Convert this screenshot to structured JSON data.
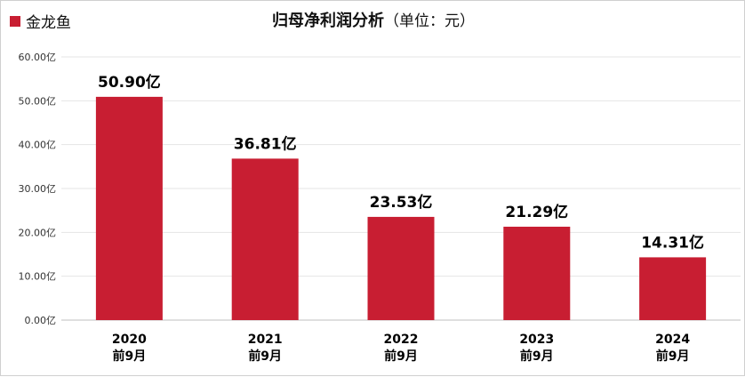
{
  "legend": {
    "label": "金龙鱼",
    "color": "#c81e32"
  },
  "title": {
    "main": "归母净利润分析",
    "unit": "（单位：元）"
  },
  "chart_data": {
    "type": "bar",
    "title": "归母净利润分析（单位：元）",
    "series": [
      {
        "name": "金龙鱼",
        "values": [
          50.9,
          36.81,
          23.53,
          21.29,
          14.31
        ],
        "labels": [
          "50.90亿",
          "36.81亿",
          "23.53亿",
          "21.29亿",
          "14.31亿"
        ]
      }
    ],
    "categories": [
      {
        "year": "2020",
        "period": "前9月"
      },
      {
        "year": "2021",
        "period": "前9月"
      },
      {
        "year": "2022",
        "period": "前9月"
      },
      {
        "year": "2023",
        "period": "前9月"
      },
      {
        "year": "2024",
        "period": "前9月"
      }
    ],
    "yticks": [
      "0.00亿",
      "10.00亿",
      "20.00亿",
      "30.00亿",
      "40.00亿",
      "50.00亿",
      "60.00亿"
    ],
    "ylim": [
      0,
      60
    ],
    "grid": true,
    "legend_position": "top-left",
    "bar_color": "#c81e32"
  }
}
